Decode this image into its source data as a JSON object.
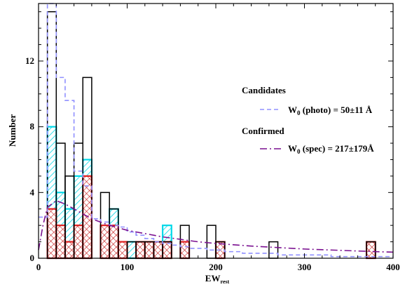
{
  "chart_data": {
    "type": "bar",
    "title": "",
    "xlabel": "EW",
    "xlabel_sub": "rest",
    "ylabel": "Number",
    "xlim": [
      0,
      400
    ],
    "ylim": [
      0,
      15.5
    ],
    "bin_width": 10,
    "bin_starts": [
      0,
      10,
      20,
      30,
      40,
      50,
      60,
      70,
      80,
      90,
      100,
      110,
      120,
      130,
      140,
      150,
      160,
      170,
      180,
      190,
      200,
      210,
      220,
      230,
      240,
      250,
      260,
      270,
      280,
      290,
      300,
      310,
      320,
      330,
      340,
      350,
      360,
      370,
      380,
      390
    ],
    "xticks": [
      0,
      100,
      200,
      300,
      400
    ],
    "yticks": [
      0,
      4,
      8,
      12
    ],
    "series": [
      {
        "name": "",
        "style": "outline",
        "color": "#000000",
        "values": [
          0,
          15,
          7,
          5,
          7,
          11,
          0,
          4,
          3,
          0,
          1,
          1,
          1,
          1,
          1,
          0,
          2,
          0,
          0,
          2,
          1,
          0,
          0,
          0,
          0,
          0,
          1,
          0,
          0,
          0,
          0,
          0,
          0,
          0,
          0,
          0,
          0,
          1,
          0,
          0
        ]
      },
      {
        "name": "",
        "style": "hatch-cyan",
        "color": "#00d8e8",
        "values": [
          0,
          8,
          4,
          3,
          5,
          6,
          0,
          2,
          3,
          1,
          1,
          1,
          1,
          1,
          2,
          0,
          1,
          0,
          0,
          0,
          1,
          0,
          0,
          0,
          0,
          0,
          0,
          0,
          0,
          0,
          0,
          0,
          0,
          0,
          0,
          0,
          0,
          1,
          0,
          0
        ]
      },
      {
        "name": "",
        "style": "hatch-red",
        "color": "#e02020",
        "values": [
          0,
          3,
          2,
          1,
          2,
          5,
          0,
          2,
          2,
          1,
          0,
          1,
          1,
          1,
          1,
          0,
          1,
          0,
          0,
          0,
          1,
          0,
          0,
          0,
          0,
          0,
          0,
          0,
          0,
          0,
          0,
          0,
          0,
          0,
          0,
          0,
          0,
          1,
          0,
          0
        ]
      },
      {
        "name": "",
        "style": "dashed-step",
        "color": "#9090ff",
        "values": [
          2.5,
          15.5,
          11,
          9.6,
          5.3,
          4.4,
          2.4,
          2.2,
          2,
          1.9,
          1.6,
          1.4,
          1.2,
          1.0,
          0.9,
          0.8,
          0.7,
          0.6,
          0.6,
          0.5,
          0.5,
          0.4,
          0.4,
          0.3,
          0.3,
          0.3,
          0.3,
          0.2,
          0.2,
          0.2,
          0.2,
          0.2,
          0.2,
          0.1,
          0.1,
          0.1,
          0.1,
          0.1,
          0.1,
          0.1
        ]
      },
      {
        "name": "",
        "style": "dashed-curve",
        "color": "#7a1090",
        "x": [
          0,
          5,
          10,
          20,
          30,
          40,
          50,
          60,
          70,
          80,
          100,
          120,
          140,
          160,
          180,
          200,
          220,
          240,
          260,
          280,
          300,
          320,
          340,
          360,
          380,
          400
        ],
        "values": [
          0.5,
          2.0,
          3.1,
          3.5,
          3.3,
          3.0,
          2.7,
          2.4,
          2.2,
          2.0,
          1.7,
          1.5,
          1.3,
          1.15,
          1.0,
          0.9,
          0.82,
          0.74,
          0.68,
          0.62,
          0.56,
          0.52,
          0.48,
          0.44,
          0.4,
          0.37
        ]
      }
    ],
    "legend": {
      "placement": "right",
      "candidates_header": "Candidates",
      "photo_label": "W",
      "photo_sub": "0",
      "photo_rest": " (photo) = 50±11 Å",
      "confirmed_header": "Confirmed",
      "spec_label": "W",
      "spec_sub": "0",
      "spec_rest": " (spec) = 217±179Å"
    }
  }
}
